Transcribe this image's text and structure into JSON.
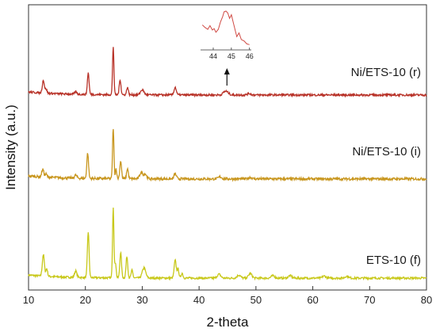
{
  "chart_data": {
    "type": "line",
    "title": "",
    "xlabel": "2-theta",
    "ylabel": "Intensity (a.u.)",
    "xlim": [
      10,
      80
    ],
    "xticks": [
      10,
      20,
      30,
      40,
      50,
      60,
      70,
      80
    ],
    "yticks": [],
    "grid": false,
    "legend": "none",
    "series": [
      {
        "name": "ETS-10 (f)",
        "color": "#c8c81a",
        "baseline": 0.0,
        "noise": 0.004,
        "peaks": [
          [
            12.6,
            0.085,
            0.18
          ],
          [
            13.2,
            0.03,
            0.15
          ],
          [
            18.3,
            0.025,
            0.2
          ],
          [
            20.5,
            0.18,
            0.15
          ],
          [
            24.9,
            0.28,
            0.12
          ],
          [
            25.3,
            0.06,
            0.12
          ],
          [
            26.2,
            0.1,
            0.15
          ],
          [
            27.3,
            0.085,
            0.15
          ],
          [
            28.2,
            0.03,
            0.15
          ],
          [
            30.3,
            0.04,
            0.3
          ],
          [
            35.8,
            0.07,
            0.18
          ],
          [
            36.3,
            0.035,
            0.15
          ],
          [
            37.0,
            0.02,
            0.15
          ],
          [
            43.5,
            0.015,
            0.3
          ],
          [
            47.0,
            0.012,
            0.3
          ],
          [
            49.0,
            0.018,
            0.3
          ],
          [
            53.0,
            0.01,
            0.3
          ],
          [
            56.0,
            0.01,
            0.3
          ],
          [
            62.0,
            0.008,
            0.3
          ],
          [
            66.0,
            0.008,
            0.3
          ]
        ]
      },
      {
        "name": "Ni/ETS-10 (i)",
        "color": "#c8961e",
        "baseline": 0.39,
        "noise": 0.005,
        "peaks": [
          [
            12.5,
            0.03,
            0.18
          ],
          [
            13.1,
            0.012,
            0.15
          ],
          [
            18.3,
            0.012,
            0.2
          ],
          [
            20.4,
            0.1,
            0.15
          ],
          [
            24.9,
            0.2,
            0.12
          ],
          [
            25.4,
            0.04,
            0.12
          ],
          [
            26.2,
            0.07,
            0.15
          ],
          [
            27.4,
            0.04,
            0.15
          ],
          [
            29.8,
            0.025,
            0.25
          ],
          [
            30.5,
            0.02,
            0.25
          ],
          [
            35.8,
            0.02,
            0.2
          ],
          [
            43.7,
            0.008,
            0.3
          ],
          [
            49.0,
            0.006,
            0.3
          ]
        ]
      },
      {
        "name": "Ni/ETS-10 (r)",
        "color": "#b83228",
        "baseline": 0.72,
        "noise": 0.004,
        "peaks": [
          [
            12.6,
            0.05,
            0.18
          ],
          [
            13.1,
            0.015,
            0.15
          ],
          [
            18.3,
            0.01,
            0.2
          ],
          [
            20.5,
            0.085,
            0.15
          ],
          [
            24.9,
            0.19,
            0.12
          ],
          [
            26.1,
            0.06,
            0.15
          ],
          [
            27.4,
            0.03,
            0.15
          ],
          [
            30.0,
            0.02,
            0.3
          ],
          [
            35.8,
            0.03,
            0.2
          ],
          [
            44.4,
            0.005,
            0.3
          ],
          [
            44.8,
            0.012,
            0.4
          ],
          [
            48.8,
            0.006,
            0.3
          ]
        ]
      }
    ],
    "inset": {
      "series": "Ni/ETS-10 (r)",
      "color": "#d04a44",
      "xlim": [
        43.3,
        46.1
      ],
      "xticks": [
        44,
        45,
        46
      ],
      "x": [
        43.4,
        43.55,
        43.7,
        43.82,
        43.95,
        44.05,
        44.15,
        44.28,
        44.4,
        44.52,
        44.6,
        44.7,
        44.8,
        44.9,
        45.0,
        45.1,
        45.2,
        45.3,
        45.42,
        45.55,
        45.7,
        45.85,
        46.0
      ],
      "y": [
        0.62,
        0.55,
        0.5,
        0.6,
        0.48,
        0.52,
        0.42,
        0.5,
        0.7,
        0.85,
        0.98,
        1.0,
        0.95,
        0.8,
        0.9,
        0.7,
        0.5,
        0.3,
        0.4,
        0.22,
        0.18,
        0.1,
        0.08
      ],
      "arrow_x": 44.9
    }
  }
}
